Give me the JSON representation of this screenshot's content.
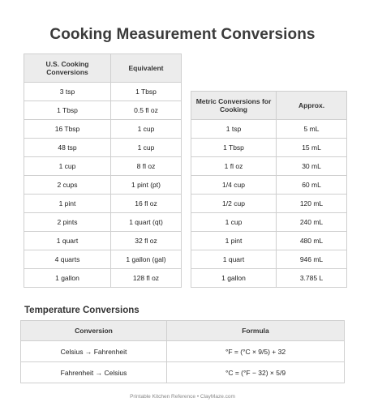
{
  "title": "Cooking Measurement Conversions",
  "us_table": {
    "headers": [
      "U.S. Cooking Conversions",
      "Equivalent"
    ],
    "rows": [
      [
        "3 tsp",
        "1 Tbsp"
      ],
      [
        "1 Tbsp",
        "0.5 fl oz"
      ],
      [
        "16 Tbsp",
        "1 cup"
      ],
      [
        "48 tsp",
        "1 cup"
      ],
      [
        "1 cup",
        "8 fl oz"
      ],
      [
        "2 cups",
        "1 pint (pt)"
      ],
      [
        "1 pint",
        "16 fl oz"
      ],
      [
        "2 pints",
        "1 quart (qt)"
      ],
      [
        "1 quart",
        "32 fl oz"
      ],
      [
        "4 quarts",
        "1 gallon (gal)"
      ],
      [
        "1 gallon",
        "128 fl oz"
      ]
    ]
  },
  "metric_table": {
    "headers": [
      "Metric Conversions for Cooking",
      "Approx."
    ],
    "rows": [
      [
        "1 tsp",
        "5 mL"
      ],
      [
        "1 Tbsp",
        "15 mL"
      ],
      [
        "1 fl oz",
        "30 mL"
      ],
      [
        "1/4 cup",
        "60 mL"
      ],
      [
        "1/2 cup",
        "120 mL"
      ],
      [
        "1 cup",
        "240 mL"
      ],
      [
        "1 pint",
        "480 mL"
      ],
      [
        "1 quart",
        "946 mL"
      ],
      [
        "1 gallon",
        "3.785 L"
      ]
    ]
  },
  "temperature": {
    "section_title": "Temperature Conversions",
    "headers": [
      "Conversion",
      "Formula"
    ],
    "rows": [
      [
        "Celsius → Fahrenheit",
        "°F = (°C × 9/5) + 32"
      ],
      [
        "Fahrenheit → Celsius",
        "°C = (°F − 32) × 5/9"
      ]
    ]
  },
  "footer": "Printable Kitchen Reference • ClayMaze.com"
}
